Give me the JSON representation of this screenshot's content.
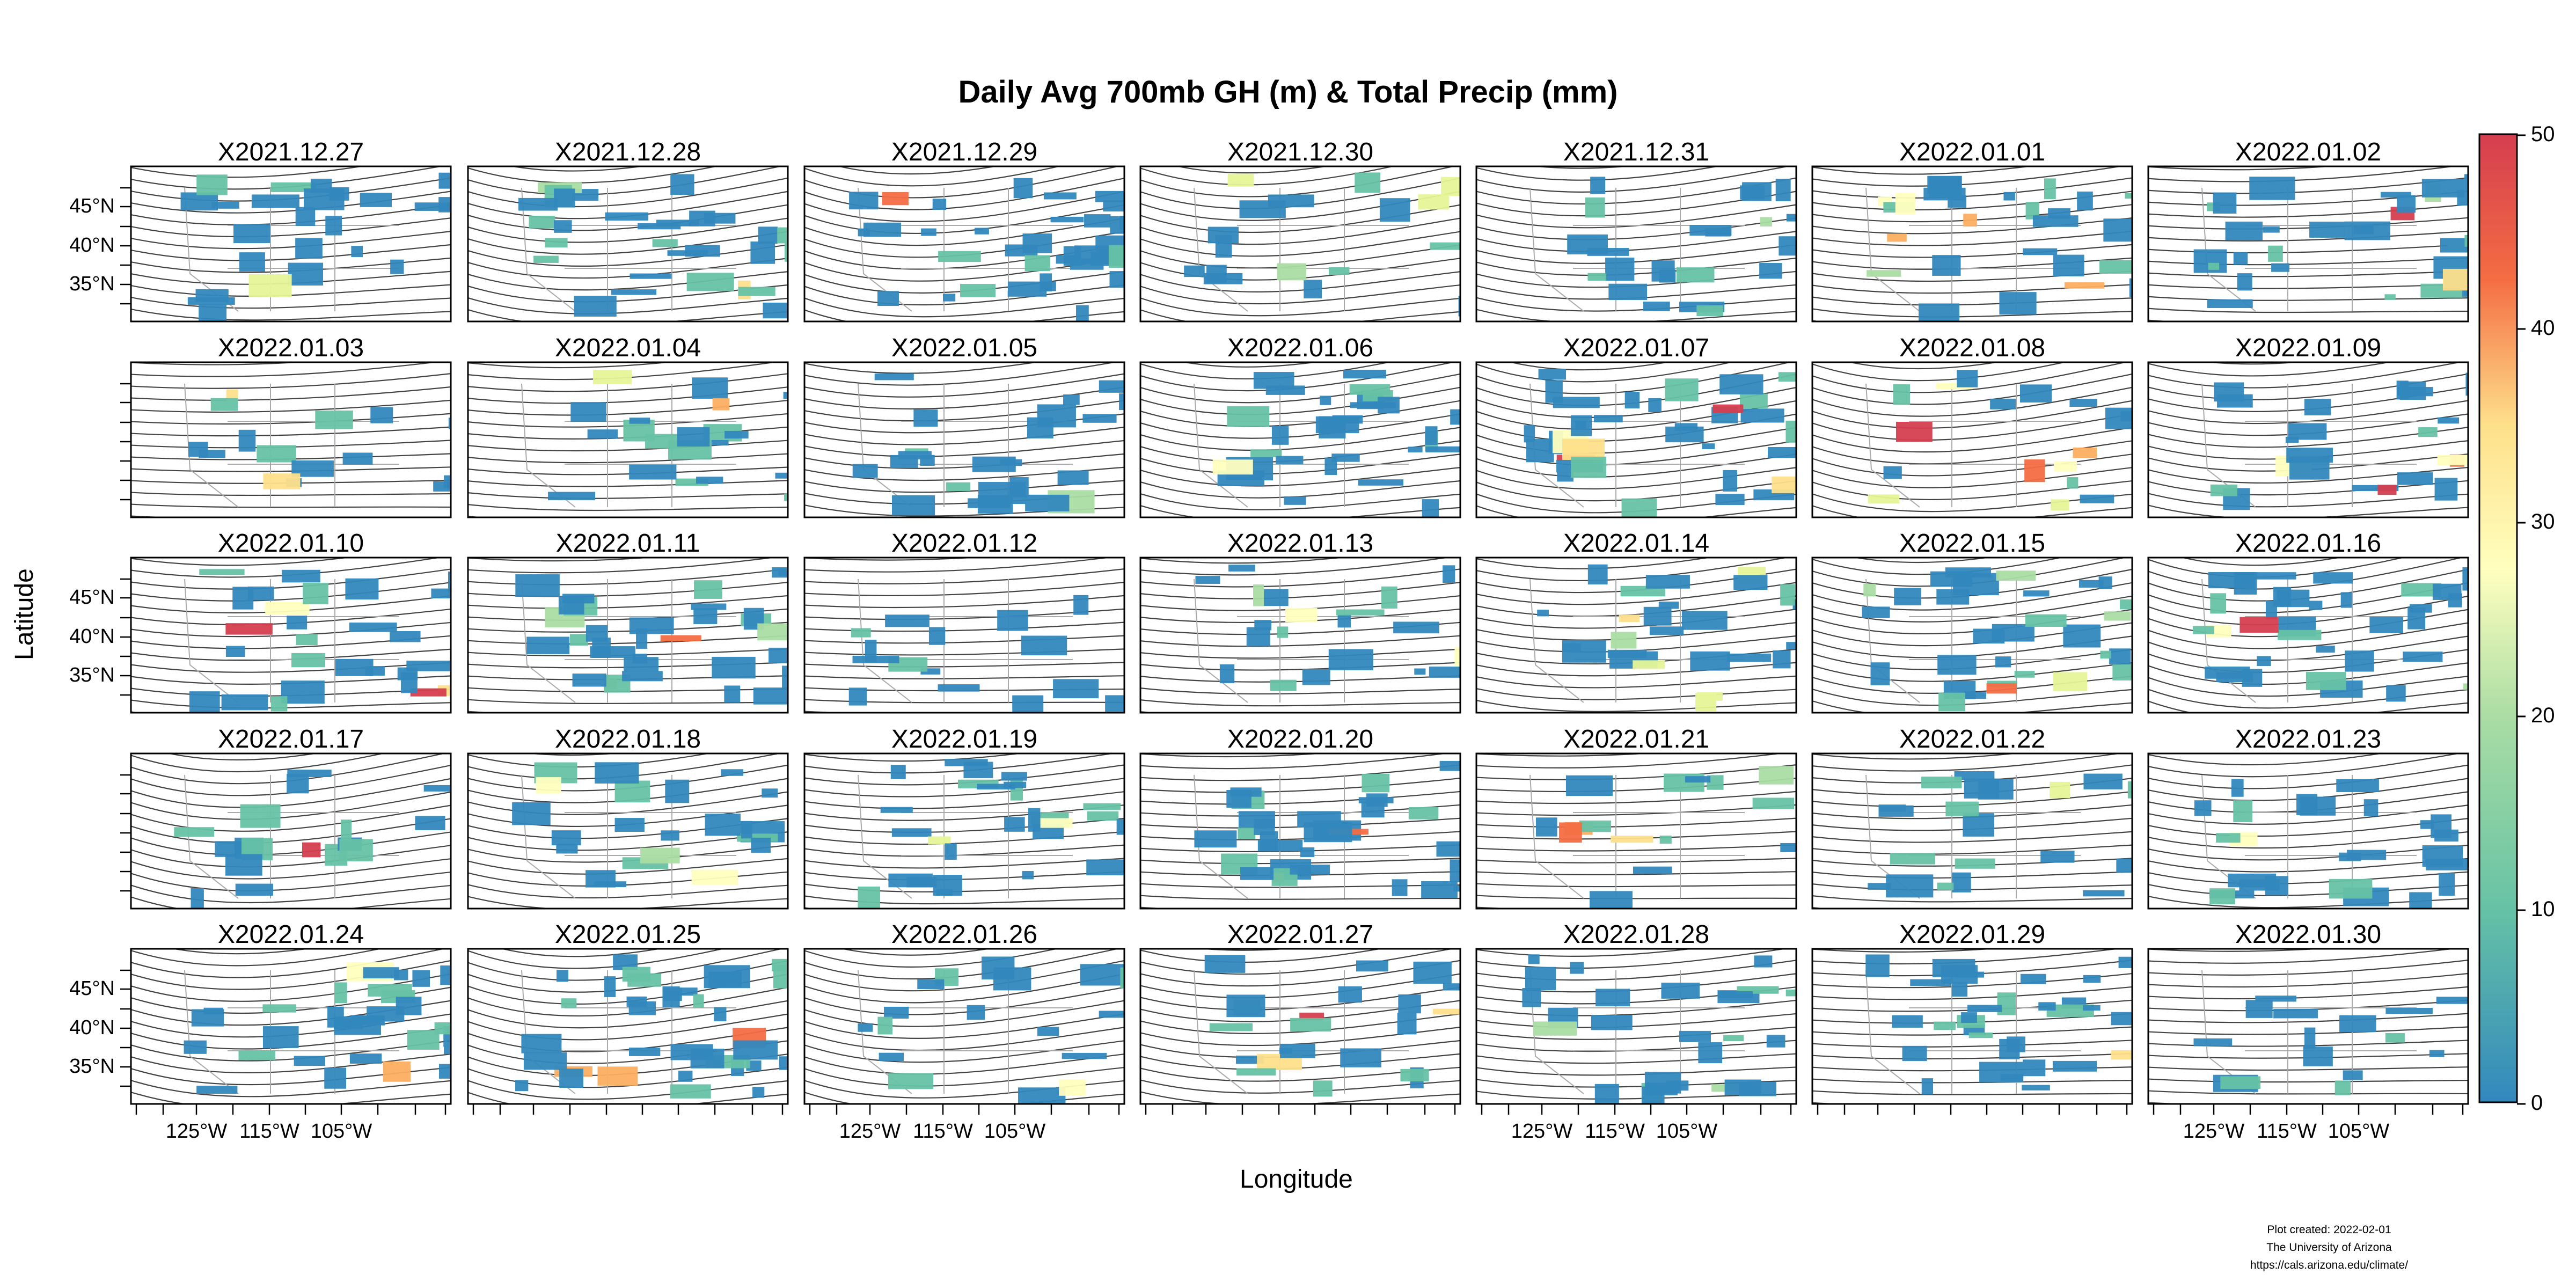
{
  "title": "Daily Avg 700mb GH (m) & Total Precip (mm)",
  "axes": {
    "ylabel": "Latitude",
    "xlabel": "Longitude",
    "lat_ticks": [
      "45°N",
      "40°N",
      "35°N"
    ],
    "lon_ticks": [
      "125°W",
      "115°W",
      "105°W"
    ]
  },
  "panels": [
    "X2021.12.27",
    "X2021.12.28",
    "X2021.12.29",
    "X2021.12.30",
    "X2021.12.31",
    "X2022.01.01",
    "X2022.01.02",
    "X2022.01.03",
    "X2022.01.04",
    "X2022.01.05",
    "X2022.01.06",
    "X2022.01.07",
    "X2022.01.08",
    "X2022.01.09",
    "X2022.01.10",
    "X2022.01.11",
    "X2022.01.12",
    "X2022.01.13",
    "X2022.01.14",
    "X2022.01.15",
    "X2022.01.16",
    "X2022.01.17",
    "X2022.01.18",
    "X2022.01.19",
    "X2022.01.20",
    "X2022.01.21",
    "X2022.01.22",
    "X2022.01.23",
    "X2022.01.24",
    "X2022.01.25",
    "X2022.01.26",
    "X2022.01.27",
    "X2022.01.28",
    "X2022.01.29",
    "X2022.01.30"
  ],
  "colorbar": {
    "ticks": [
      "50",
      "40",
      "30",
      "20",
      "10",
      "0"
    ],
    "colors": [
      "#d53e4f",
      "#f46d43",
      "#fdae61",
      "#fee08b",
      "#ffffbf",
      "#e6f598",
      "#abdda4",
      "#66c2a5",
      "#3288bd"
    ]
  },
  "footer": {
    "line1": "Plot created: 2022-02-01",
    "line2": "The University of Arizona",
    "line3": "https://cals.arizona.edu/climate/"
  }
}
